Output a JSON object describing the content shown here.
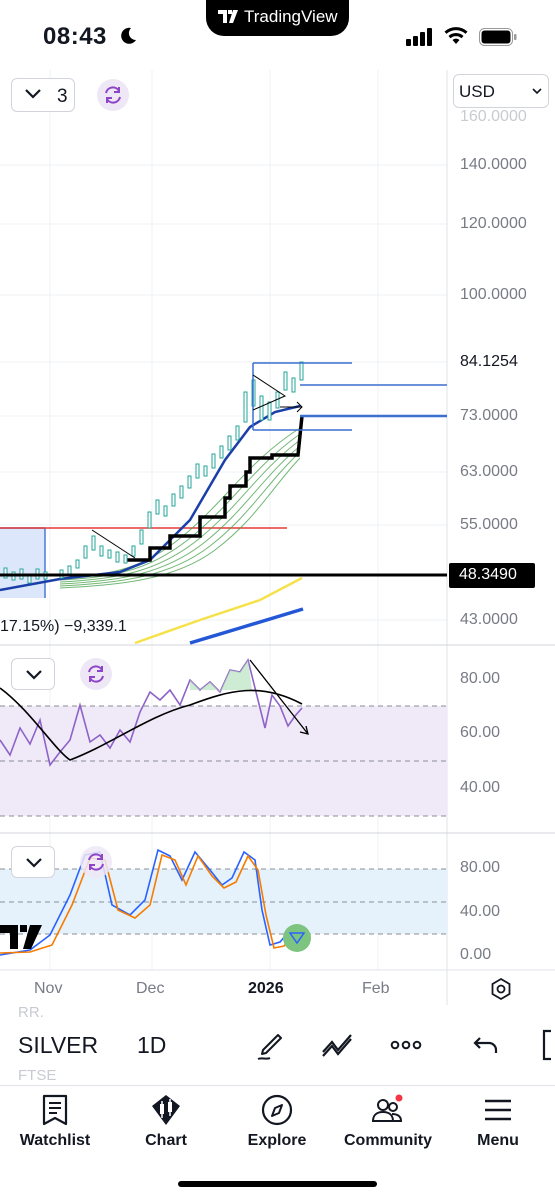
{
  "status_bar": {
    "time": "08:43",
    "pill_brand": "TradingView"
  },
  "chart_header": {
    "interval_value": "3",
    "currency": "USD"
  },
  "price_axis": {
    "labels": [
      "140.0000",
      "120.0000",
      "100.0000",
      "84.1254",
      "73.0000",
      "63.0000",
      "55.0000",
      "43.0000"
    ],
    "current_price": "48.3490",
    "top_partial": "160.0000"
  },
  "main_pane": {
    "pnl_text": "17.15%) −9,339.1",
    "colors": {
      "current_price_line": "#000000",
      "ma_green": "#2e7d32",
      "ma_blue": "#1a3fa8",
      "yellow_line": "#f5e24a",
      "blue_line": "#2457d6",
      "resistance": "#e53935",
      "candles": "#26a69a"
    }
  },
  "rsi_pane": {
    "labels": [
      "80.00",
      "60.00",
      "40.00"
    ],
    "colors": {
      "rsi": "#8e63c7",
      "band": "#ede7f6",
      "signal": "#000000"
    }
  },
  "stoch_pane": {
    "labels": [
      "80.00",
      "40.00",
      "0.00"
    ],
    "colors": {
      "k_line": "#2962ff",
      "d_line": "#f57c00",
      "band": "#e3f2fd"
    }
  },
  "time_axis": {
    "labels": [
      "Nov",
      "Dec",
      "2026",
      "Feb"
    ]
  },
  "symbol_bar": {
    "ghost_top": "RR.",
    "symbol": "SILVER",
    "timeframe": "1D",
    "ghost_bottom": "FTSE",
    "tools": [
      "pen-icon",
      "trendline-icon",
      "more-icon",
      "undo-icon"
    ]
  },
  "tab_bar": {
    "tabs": [
      {
        "label": "Watchlist",
        "icon": "watchlist-icon"
      },
      {
        "label": "Chart",
        "icon": "chart-icon"
      },
      {
        "label": "Explore",
        "icon": "explore-icon"
      },
      {
        "label": "Community",
        "icon": "community-icon"
      },
      {
        "label": "Menu",
        "icon": "menu-icon"
      }
    ]
  }
}
